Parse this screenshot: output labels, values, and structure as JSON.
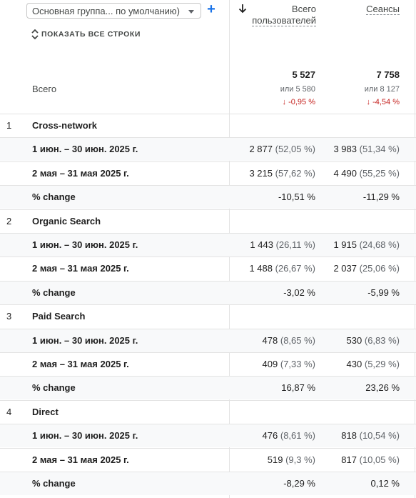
{
  "toolbar": {
    "dimension_select": "Основная группа... по умолчанию)",
    "add_label": "+",
    "show_all_rows": "ПОКАЗАТЬ ВСЕ СТРОКИ"
  },
  "columns": {
    "users_line1": "Всего",
    "users_line2": "пользователей",
    "sessions": "Сеансы",
    "sorted_by": "users",
    "sort_direction": "descending"
  },
  "totals": {
    "label": "Всего",
    "users": {
      "value": "5 527",
      "compare": "или 5 580",
      "change": "↓ -0,95 %"
    },
    "sessions": {
      "value": "7 758",
      "compare": "или 8 127",
      "change": "↓ -4,54 %"
    },
    "change_color": "#c5221f"
  },
  "groups": [
    {
      "index": "1",
      "name": "Cross-network",
      "rows": [
        {
          "label": "1 июн. – 30 июн. 2025 г.",
          "users": "2 877",
          "users_pct": "(52,05 %)",
          "sessions": "3 983",
          "sessions_pct": "(51,34 %)"
        },
        {
          "label": "2 мая – 31 мая 2025 г.",
          "users": "3 215",
          "users_pct": "(57,62 %)",
          "sessions": "4 490",
          "sessions_pct": "(55,25 %)"
        },
        {
          "label": "% change",
          "users": "-10,51 %",
          "users_pct": "",
          "sessions": "-11,29 %",
          "sessions_pct": ""
        }
      ]
    },
    {
      "index": "2",
      "name": "Organic Search",
      "rows": [
        {
          "label": "1 июн. – 30 июн. 2025 г.",
          "users": "1 443",
          "users_pct": "(26,11 %)",
          "sessions": "1 915",
          "sessions_pct": "(24,68 %)"
        },
        {
          "label": "2 мая – 31 мая 2025 г.",
          "users": "1 488",
          "users_pct": "(26,67 %)",
          "sessions": "2 037",
          "sessions_pct": "(25,06 %)"
        },
        {
          "label": "% change",
          "users": "-3,02 %",
          "users_pct": "",
          "sessions": "-5,99 %",
          "sessions_pct": ""
        }
      ]
    },
    {
      "index": "3",
      "name": "Paid Search",
      "rows": [
        {
          "label": "1 июн. – 30 июн. 2025 г.",
          "users": "478",
          "users_pct": "(8,65 %)",
          "sessions": "530",
          "sessions_pct": "(6,83 %)"
        },
        {
          "label": "2 мая – 31 мая 2025 г.",
          "users": "409",
          "users_pct": "(7,33 %)",
          "sessions": "430",
          "sessions_pct": "(5,29 %)"
        },
        {
          "label": "% change",
          "users": "16,87 %",
          "users_pct": "",
          "sessions": "23,26 %",
          "sessions_pct": ""
        }
      ]
    },
    {
      "index": "4",
      "name": "Direct",
      "rows": [
        {
          "label": "1 июн. – 30 июн. 2025 г.",
          "users": "476",
          "users_pct": "(8,61 %)",
          "sessions": "818",
          "sessions_pct": "(10,54 %)"
        },
        {
          "label": "2 мая – 31 мая 2025 г.",
          "users": "519",
          "users_pct": "(9,3 %)",
          "sessions": "817",
          "sessions_pct": "(10,05 %)"
        },
        {
          "label": "% change",
          "users": "-8,29 %",
          "users_pct": "",
          "sessions": "0,12 %",
          "sessions_pct": ""
        }
      ]
    }
  ]
}
